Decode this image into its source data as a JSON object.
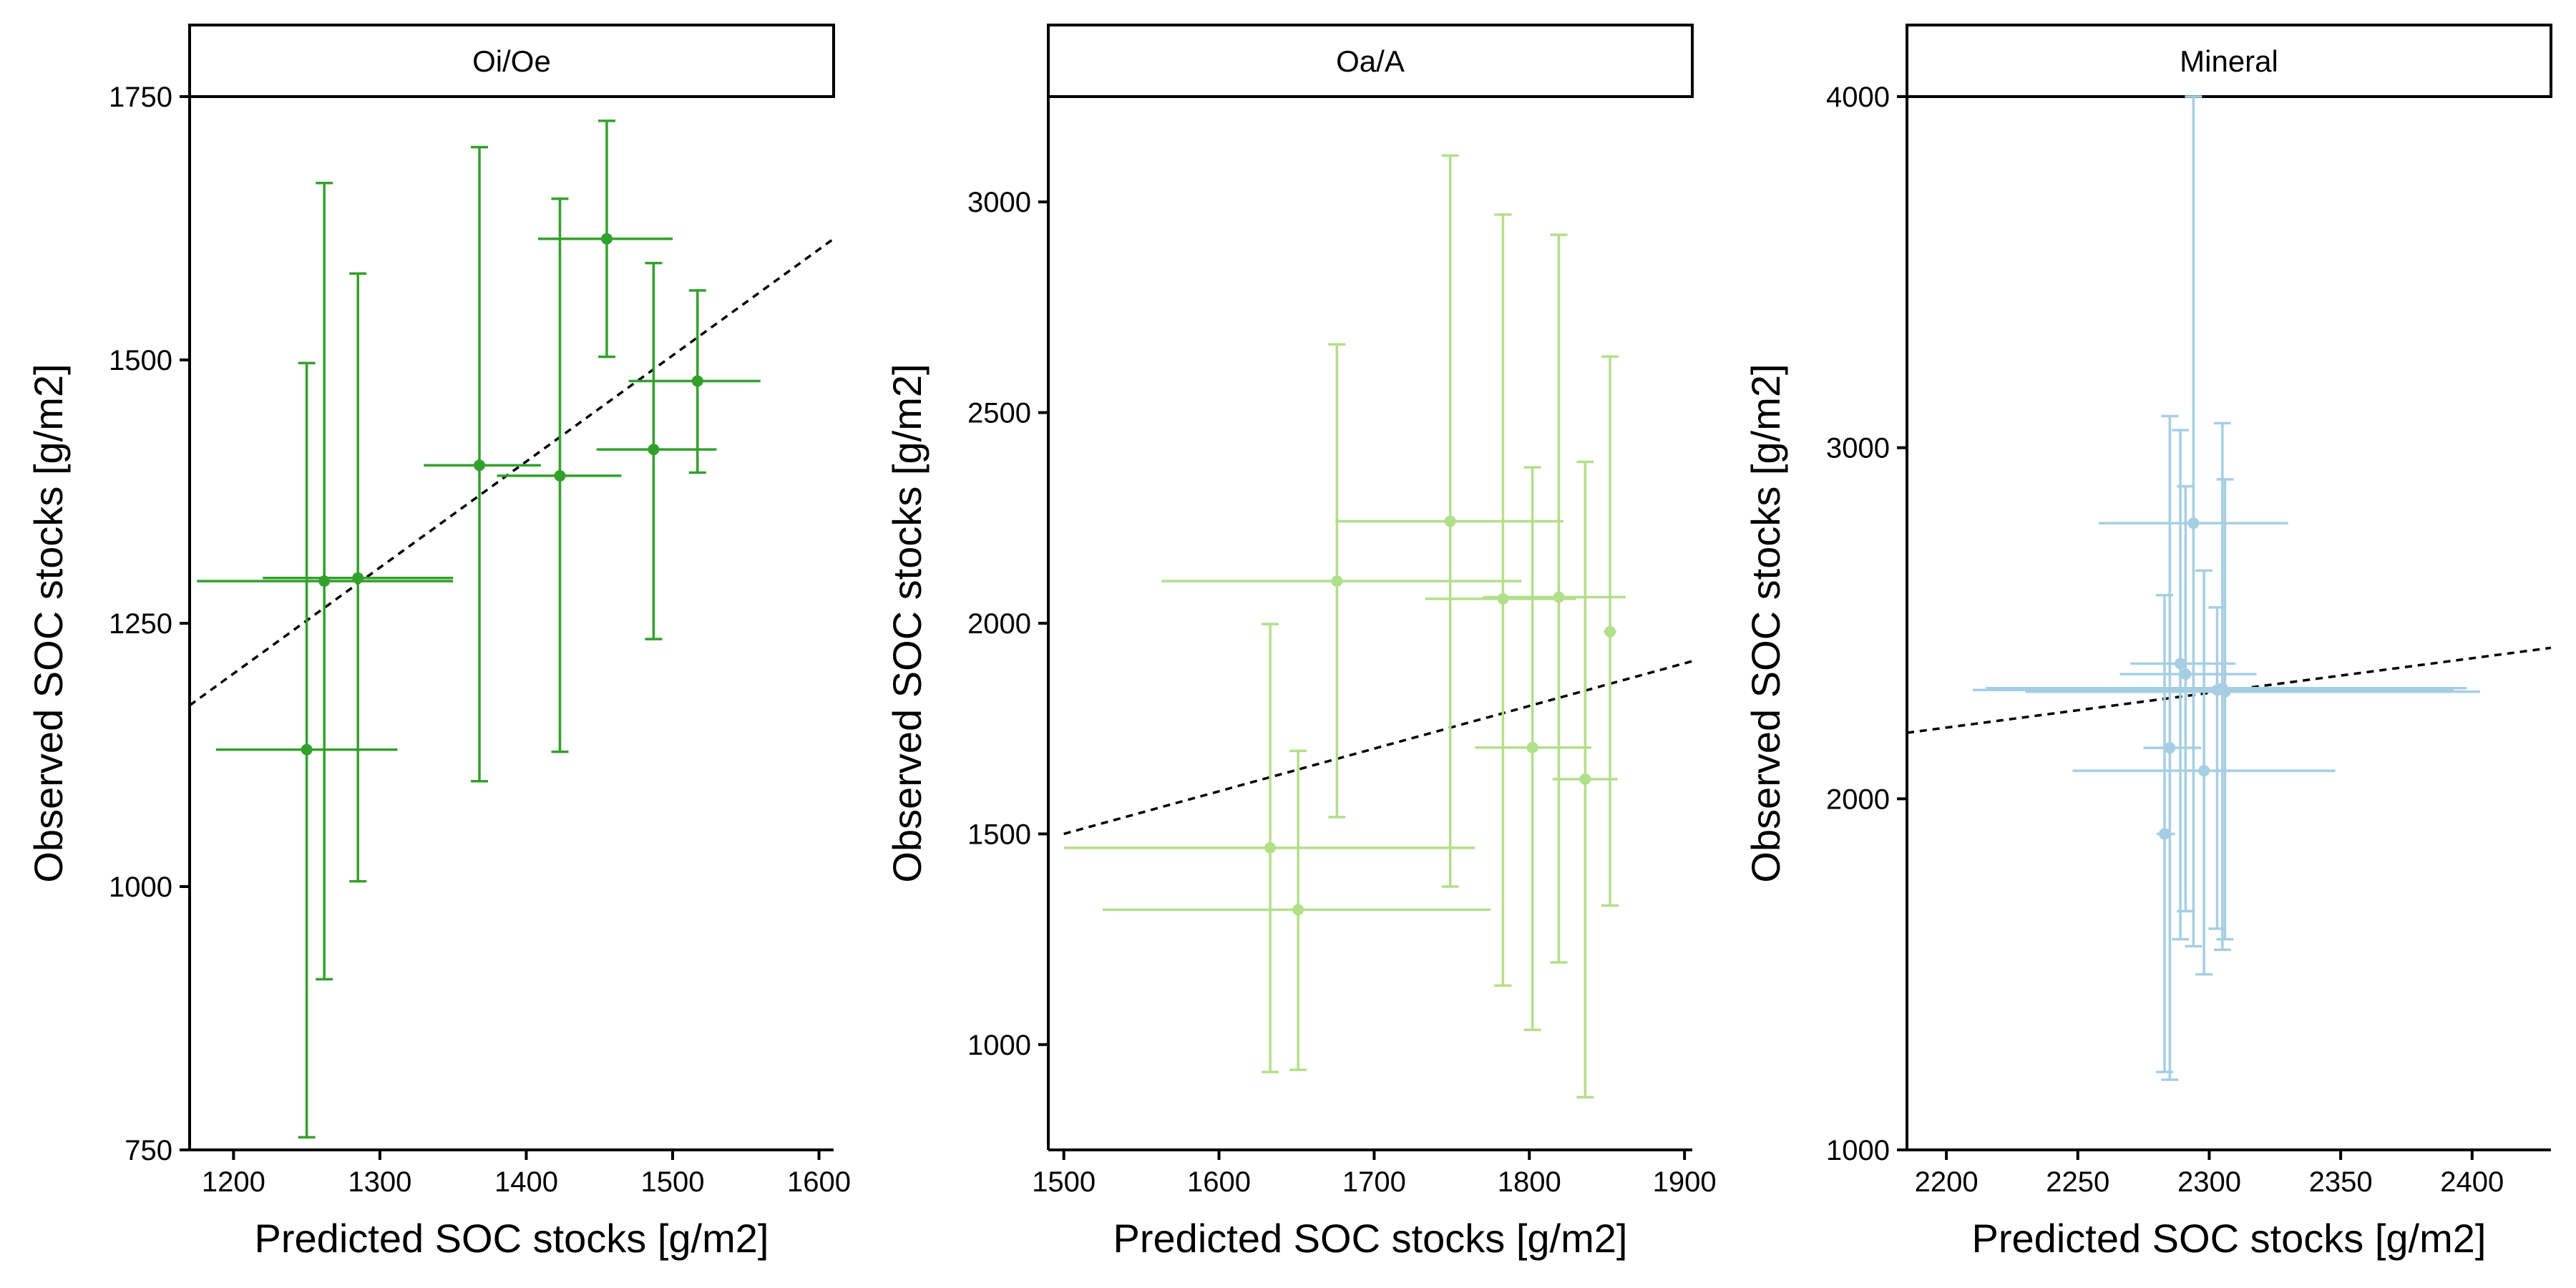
{
  "chart_data": [
    {
      "type": "scatter",
      "title": "Oi/Oe",
      "xlabel": "Predicted SOC stocks [g/m2]",
      "ylabel": "Observed SOC stocks [g/m2]",
      "xlim": [
        1170,
        1610
      ],
      "ylim": [
        750,
        1750
      ],
      "xticks": [
        1200,
        1300,
        1400,
        1500,
        1600
      ],
      "xtick_labels": [
        "1200",
        "1300",
        "1400",
        "1500",
        "1600"
      ],
      "yticks": [
        750,
        1000,
        1250,
        1500,
        1750
      ],
      "ytick_labels": [
        "750",
        "1000",
        "1250",
        "1500",
        "1750"
      ],
      "color": "#33a02c",
      "grid": false,
      "reference_line": {
        "style": "dashed",
        "from": [
          1170,
          1172
        ],
        "to": [
          1610,
          1615
        ]
      },
      "points": [
        {
          "x": 1250,
          "y": 1130,
          "x_err": [
            1188,
            1312
          ],
          "y_err": [
            762,
            1497
          ]
        },
        {
          "x": 1262,
          "y": 1290,
          "x_err": [
            1175,
            1350
          ],
          "y_err": [
            912,
            1668
          ]
        },
        {
          "x": 1285,
          "y": 1293,
          "x_err": [
            1220,
            1350
          ],
          "y_err": [
            1005,
            1582
          ]
        },
        {
          "x": 1368,
          "y": 1400,
          "x_err": [
            1330,
            1410
          ],
          "y_err": [
            1100,
            1702
          ]
        },
        {
          "x": 1423,
          "y": 1390,
          "x_err": [
            1380,
            1465
          ],
          "y_err": [
            1128,
            1653
          ]
        },
        {
          "x": 1455,
          "y": 1615,
          "x_err": [
            1408,
            1500
          ],
          "y_err": [
            1503,
            1727
          ]
        },
        {
          "x": 1487,
          "y": 1415,
          "x_err": [
            1448,
            1530
          ],
          "y_err": [
            1235,
            1592
          ]
        },
        {
          "x": 1517,
          "y": 1480,
          "x_err": [
            1470,
            1560
          ],
          "y_err": [
            1393,
            1566
          ]
        }
      ]
    },
    {
      "type": "scatter",
      "title": "Oa/A",
      "xlabel": "Predicted SOC stocks [g/m2]",
      "ylabel": "Observed SOC stocks [g/m2]",
      "xlim": [
        1490,
        1905
      ],
      "ylim": [
        750,
        3250
      ],
      "xticks": [
        1500,
        1600,
        1700,
        1800,
        1900
      ],
      "xtick_labels": [
        "1500",
        "1600",
        "1700",
        "1800",
        "1900"
      ],
      "yticks": [
        1000,
        1500,
        2000,
        2500,
        3000
      ],
      "ytick_labels": [
        "1000",
        "1500",
        "2000",
        "2500",
        "3000"
      ],
      "color": "#b2df8a",
      "grid": false,
      "reference_line": {
        "style": "dashed",
        "from": [
          1500,
          1500
        ],
        "to": [
          1905,
          1910
        ]
      },
      "points": [
        {
          "x": 1633,
          "y": 1467,
          "x_err": [
            1500,
            1765
          ],
          "y_err": [
            935,
            1998
          ]
        },
        {
          "x": 1651,
          "y": 1320,
          "x_err": [
            1525,
            1775
          ],
          "y_err": [
            940,
            1697
          ]
        },
        {
          "x": 1676,
          "y": 2100,
          "x_err": [
            1563,
            1795
          ],
          "y_err": [
            1540,
            2662
          ]
        },
        {
          "x": 1749,
          "y": 2242,
          "x_err": [
            1675,
            1822
          ],
          "y_err": [
            1375,
            3110
          ]
        },
        {
          "x": 1783,
          "y": 2058,
          "x_err": [
            1733,
            1830
          ],
          "y_err": [
            1140,
            2970
          ]
        },
        {
          "x": 1802,
          "y": 1705,
          "x_err": [
            1765,
            1840
          ],
          "y_err": [
            1035,
            2370
          ]
        },
        {
          "x": 1819,
          "y": 2062,
          "x_err": [
            1770,
            1862
          ],
          "y_err": [
            1195,
            2922
          ]
        },
        {
          "x": 1836,
          "y": 1630,
          "x_err": [
            1815,
            1857
          ],
          "y_err": [
            875,
            2383
          ]
        },
        {
          "x": 1852,
          "y": 1980,
          "x_err": [
            1848,
            1856
          ],
          "y_err": [
            1330,
            2633
          ]
        }
      ]
    },
    {
      "type": "scatter",
      "title": "Mineral",
      "xlabel": "Predicted SOC stocks [g/m2]",
      "ylabel": "Observed SOC stocks [g/m2]",
      "xlim": [
        2185,
        2430
      ],
      "ylim": [
        1000,
        4000
      ],
      "xticks": [
        2200,
        2250,
        2300,
        2350,
        2400
      ],
      "xtick_labels": [
        "2200",
        "2250",
        "2300",
        "2350",
        "2400"
      ],
      "yticks": [
        1000,
        2000,
        3000,
        4000
      ],
      "ytick_labels": [
        "1000",
        "2000",
        "3000",
        "4000"
      ],
      "color": "#a6cee3",
      "grid": false,
      "reference_line": {
        "style": "dashed",
        "from": [
          2185,
          2188
        ],
        "to": [
          2430,
          2430
        ]
      },
      "points": [
        {
          "x": 2283,
          "y": 1900,
          "x_err": [
            2280,
            2287
          ],
          "y_err": [
            1222,
            2580
          ]
        },
        {
          "x": 2285,
          "y": 2145,
          "x_err": [
            2275,
            2297
          ],
          "y_err": [
            1200,
            3090
          ]
        },
        {
          "x": 2289,
          "y": 2385,
          "x_err": [
            2270,
            2310
          ],
          "y_err": [
            1600,
            3050
          ]
        },
        {
          "x": 2291,
          "y": 2355,
          "x_err": [
            2266,
            2318
          ],
          "y_err": [
            1680,
            2890
          ]
        },
        {
          "x": 2294,
          "y": 2785,
          "x_err": [
            2258,
            2330
          ],
          "y_err": [
            1580,
            4000
          ]
        },
        {
          "x": 2298,
          "y": 2080,
          "x_err": [
            2248,
            2348
          ],
          "y_err": [
            1500,
            2650
          ]
        },
        {
          "x": 2303,
          "y": 2310,
          "x_err": [
            2210,
            2393
          ],
          "y_err": [
            1630,
            2545
          ]
        },
        {
          "x": 2305,
          "y": 2315,
          "x_err": [
            2215,
            2398
          ],
          "y_err": [
            1570,
            3070
          ]
        },
        {
          "x": 2306,
          "y": 2305,
          "x_err": [
            2230,
            2403
          ],
          "y_err": [
            1600,
            2910
          ]
        }
      ]
    }
  ]
}
